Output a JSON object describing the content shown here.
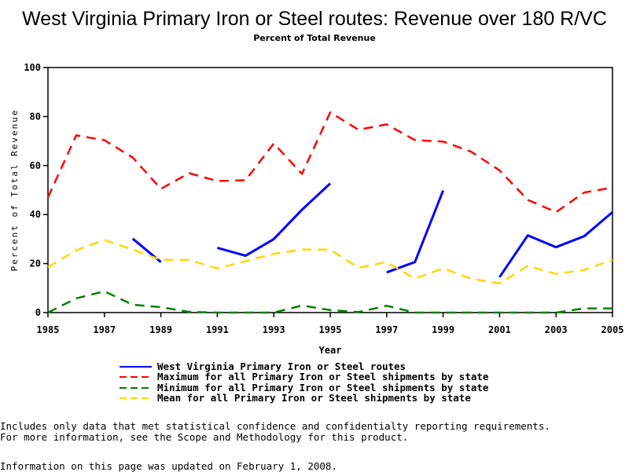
{
  "chart_data": {
    "type": "line",
    "title": "West Virginia Primary Iron or Steel routes: Revenue over 180 R/VC",
    "subtitle": "Percent of Total Revenue",
    "xlabel": "Year",
    "ylabel": "Percent of Total Revenue",
    "xlim": [
      1985,
      2005
    ],
    "ylim": [
      0,
      100
    ],
    "grid": false,
    "legend_position": "bottom",
    "x_ticks": [
      "1985",
      "1987",
      "1989",
      "1991",
      "1993",
      "1995",
      "1997",
      "1999",
      "2001",
      "2003",
      "2005"
    ],
    "y_ticks": [
      "0",
      "20",
      "40",
      "60",
      "80",
      "100"
    ],
    "x": [
      1985,
      1986,
      1987,
      1988,
      1989,
      1990,
      1991,
      1992,
      1993,
      1994,
      1995,
      1996,
      1997,
      1998,
      1999,
      2000,
      2001,
      2002,
      2003,
      2004,
      2005
    ],
    "series": [
      {
        "name": "West Virginia Primary Iron or Steel routes",
        "color": "#0000ff",
        "style": "solid",
        "values": [
          null,
          null,
          null,
          30.2,
          20.6,
          null,
          26.4,
          23.2,
          30.0,
          42.0,
          52.7,
          null,
          16.4,
          20.6,
          49.8,
          null,
          14.5,
          31.5,
          26.7,
          31.2,
          41.0
        ]
      },
      {
        "name": "Maximum for all Primary Iron or Steel shipments by state",
        "color": "#ff0000",
        "style": "dashed",
        "values": [
          47.0,
          72.3,
          70.4,
          63.3,
          50.5,
          56.9,
          53.7,
          54.0,
          69.0,
          56.6,
          81.7,
          74.6,
          76.8,
          70.4,
          69.8,
          65.6,
          58.0,
          46.0,
          41.0,
          49.0,
          51.0
        ]
      },
      {
        "name": "Minimum for all Primary Iron or Steel shipments by state",
        "color": "#008000",
        "style": "dashed",
        "values": [
          0.0,
          5.8,
          8.7,
          3.2,
          2.2,
          0.3,
          0.0,
          0.0,
          0.0,
          2.9,
          1.0,
          0.2,
          2.8,
          0.0,
          0.0,
          0.0,
          0.0,
          0.0,
          0.0,
          1.7,
          1.7
        ]
      },
      {
        "name": "Mean for all Primary Iron or Steel shipments by state",
        "color": "#ffd700",
        "style": "dashed",
        "values": [
          18.6,
          25.4,
          29.6,
          25.7,
          21.5,
          21.5,
          18.0,
          21.0,
          24.0,
          25.7,
          25.7,
          18.3,
          20.6,
          13.8,
          18.0,
          13.8,
          11.9,
          19.0,
          15.8,
          17.4,
          21.5
        ]
      }
    ]
  },
  "notes": {
    "line1": "Includes only data that met statistical confidence and confidentialty reporting requirements.",
    "line2": "For more information, see the Scope and Methodology for this product.",
    "updated": "Information on this page was updated on February 1, 2008."
  }
}
